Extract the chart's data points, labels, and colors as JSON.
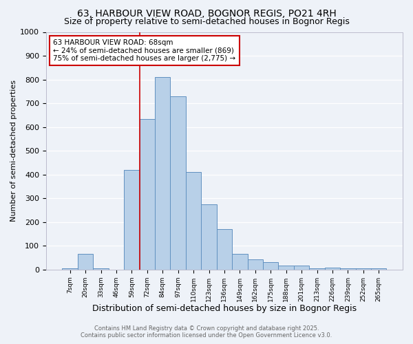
{
  "title": "63, HARBOUR VIEW ROAD, BOGNOR REGIS, PO21 4RH",
  "subtitle": "Size of property relative to semi-detached houses in Bognor Regis",
  "xlabel": "Distribution of semi-detached houses by size in Bognor Regis",
  "ylabel": "Number of semi-detached properties",
  "footer_line1": "Contains HM Land Registry data © Crown copyright and database right 2025.",
  "footer_line2": "Contains public sector information licensed under the Open Government Licence v3.0.",
  "annotation_title": "63 HARBOUR VIEW ROAD: 68sqm",
  "annotation_line2": "← 24% of semi-detached houses are smaller (869)",
  "annotation_line3": "75% of semi-detached houses are larger (2,775) →",
  "categories": [
    "7sqm",
    "20sqm",
    "33sqm",
    "46sqm",
    "59sqm",
    "72sqm",
    "84sqm",
    "97sqm",
    "110sqm",
    "123sqm",
    "136sqm",
    "149sqm",
    "162sqm",
    "175sqm",
    "188sqm",
    "201sqm",
    "213sqm",
    "226sqm",
    "239sqm",
    "252sqm",
    "265sqm"
  ],
  "bar_heights": [
    5,
    65,
    5,
    0,
    420,
    635,
    810,
    730,
    410,
    275,
    170,
    65,
    42,
    30,
    18,
    18,
    5,
    8,
    5,
    5,
    5
  ],
  "bar_color": "#b8d0e8",
  "bar_edge_color": "#6090c0",
  "vline_color": "#cc0000",
  "vline_x": 4.5,
  "ylim": [
    0,
    1000
  ],
  "yticks": [
    0,
    100,
    200,
    300,
    400,
    500,
    600,
    700,
    800,
    900,
    1000
  ],
  "background_color": "#eef2f8",
  "plot_bg_color": "#eef2f8",
  "grid_color": "#ffffff",
  "title_fontsize": 10,
  "subtitle_fontsize": 9,
  "xlabel_fontsize": 9,
  "ylabel_fontsize": 8,
  "annotation_fontsize": 7.5
}
